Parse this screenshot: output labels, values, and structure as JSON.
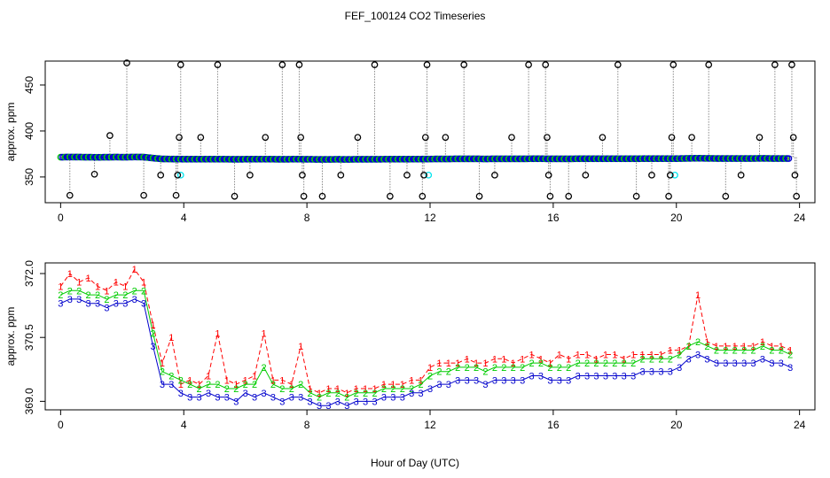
{
  "title": "FEF_100124  CO2 Timeseries",
  "xlabel": "Hour of Day (UTC)",
  "colors": {
    "series1": "#ff0000",
    "series2": "#00cc00",
    "series3": "#0000cc",
    "reference": "#00e5ee",
    "flagged": "#000000",
    "connector": "#888888"
  },
  "chart_data": [
    {
      "type": "scatter",
      "panel": "top",
      "title": "FEF_100124  CO2 Timeseries",
      "xlabel": "",
      "ylabel": "approx. ppm",
      "xlim": [
        -0.5,
        24.5
      ],
      "ylim": [
        322,
        476
      ],
      "xticks": [
        0,
        4,
        8,
        12,
        16,
        20,
        24
      ],
      "yticks": [
        350,
        400,
        450
      ],
      "baseline": {
        "name": "measurement",
        "x": [
          0.0,
          0.3,
          0.6,
          0.9,
          1.2,
          1.5,
          1.8,
          2.1,
          2.4,
          2.7,
          3.0,
          3.3,
          3.6,
          3.9,
          4.2,
          4.5,
          4.8,
          5.1,
          5.4,
          5.7,
          6.0,
          6.3,
          6.6,
          6.9,
          7.2,
          7.5,
          7.8,
          8.1,
          8.4,
          8.7,
          9.0,
          9.3,
          9.6,
          9.9,
          10.2,
          10.5,
          10.8,
          11.1,
          11.4,
          11.7,
          12.0,
          12.3,
          12.6,
          12.9,
          13.2,
          13.5,
          13.8,
          14.1,
          14.4,
          14.7,
          15.0,
          15.3,
          15.6,
          15.9,
          16.2,
          16.5,
          16.8,
          17.1,
          17.4,
          17.7,
          18.0,
          18.3,
          18.6,
          18.9,
          19.2,
          19.5,
          19.8,
          20.1,
          20.4,
          20.7,
          21.0,
          21.3,
          21.6,
          21.9,
          22.2,
          22.5,
          22.8,
          23.1,
          23.4,
          23.7
        ],
        "y": [
          371.5,
          371.7,
          371.6,
          371.5,
          371.4,
          371.5,
          371.6,
          371.5,
          371.7,
          371.6,
          370.5,
          369.6,
          369.5,
          369.4,
          369.3,
          369.3,
          369.4,
          369.3,
          369.3,
          369.2,
          369.3,
          369.3,
          369.4,
          369.3,
          369.2,
          369.3,
          369.3,
          369.2,
          369.1,
          369.1,
          369.2,
          369.1,
          369.2,
          369.2,
          369.2,
          369.3,
          369.3,
          369.3,
          369.4,
          369.4,
          369.5,
          369.6,
          369.6,
          369.7,
          369.7,
          369.7,
          369.6,
          369.7,
          369.7,
          369.7,
          369.7,
          369.8,
          369.8,
          369.7,
          369.7,
          369.7,
          369.8,
          369.8,
          369.8,
          369.8,
          369.8,
          369.8,
          369.8,
          369.9,
          369.9,
          369.9,
          369.9,
          370.0,
          370.2,
          370.3,
          370.2,
          370.1,
          370.1,
          370.1,
          370.1,
          370.1,
          370.2,
          370.1,
          370.1,
          370.0
        ]
      },
      "reference_points": {
        "name": "reference",
        "x": [
          3.9,
          11.95,
          19.95
        ],
        "y": [
          352,
          352,
          352
        ]
      },
      "flagged_points": {
        "name": "flagged",
        "x": [
          0.3,
          1.1,
          1.6,
          2.15,
          2.7,
          3.25,
          3.75,
          3.8,
          3.85,
          3.9,
          4.55,
          5.1,
          5.65,
          6.15,
          6.65,
          7.2,
          7.75,
          7.8,
          7.85,
          7.9,
          8.5,
          9.1,
          9.65,
          10.2,
          10.7,
          11.25,
          11.75,
          11.8,
          11.85,
          11.9,
          12.5,
          13.1,
          13.6,
          14.1,
          14.65,
          15.2,
          15.75,
          15.8,
          15.85,
          15.9,
          16.5,
          17.05,
          17.6,
          18.1,
          18.7,
          19.2,
          19.75,
          19.8,
          19.85,
          19.9,
          20.5,
          21.05,
          21.6,
          22.1,
          22.7,
          23.2,
          23.75,
          23.8,
          23.85,
          23.9
        ],
        "y": [
          330,
          353,
          395,
          474,
          330,
          352,
          330,
          352,
          393,
          472,
          393,
          472,
          329,
          352,
          393,
          472,
          472,
          393,
          352,
          329,
          329,
          352,
          393,
          472,
          329,
          352,
          329,
          352,
          393,
          472,
          393,
          472,
          329,
          352,
          393,
          472,
          472,
          393,
          352,
          329,
          329,
          352,
          393,
          472,
          329,
          352,
          329,
          352,
          393,
          472,
          393,
          472,
          329,
          352,
          393,
          472,
          472,
          393,
          352,
          329
        ]
      }
    },
    {
      "type": "line",
      "panel": "bottom",
      "xlabel": "Hour of Day (UTC)",
      "ylabel": "approx. ppm",
      "xlim": [
        -0.5,
        24.5
      ],
      "ylim": [
        368.8,
        372.25
      ],
      "xticks": [
        0,
        4,
        8,
        12,
        16,
        20,
        24
      ],
      "yticks": [
        369.0,
        370.5,
        372.0
      ],
      "ytick_labels": [
        "369.0",
        "370.5",
        "372.0"
      ],
      "x": [
        0.0,
        0.3,
        0.6,
        0.9,
        1.2,
        1.5,
        1.8,
        2.1,
        2.4,
        2.7,
        3.0,
        3.3,
        3.6,
        3.9,
        4.2,
        4.5,
        4.8,
        5.1,
        5.4,
        5.7,
        6.0,
        6.3,
        6.6,
        6.9,
        7.2,
        7.5,
        7.8,
        8.1,
        8.4,
        8.7,
        9.0,
        9.3,
        9.6,
        9.9,
        10.2,
        10.5,
        10.8,
        11.1,
        11.4,
        11.7,
        12.0,
        12.3,
        12.6,
        12.9,
        13.2,
        13.5,
        13.8,
        14.1,
        14.4,
        14.7,
        15.0,
        15.3,
        15.6,
        15.9,
        16.2,
        16.5,
        16.8,
        17.1,
        17.4,
        17.7,
        18.0,
        18.3,
        18.6,
        18.9,
        19.2,
        19.5,
        19.8,
        20.1,
        20.4,
        20.7,
        21.0,
        21.3,
        21.6,
        21.9,
        22.2,
        22.5,
        22.8,
        23.1,
        23.4,
        23.7
      ],
      "series": [
        {
          "name": "1",
          "marker": "1",
          "values": [
            371.7,
            372.0,
            371.8,
            371.9,
            371.7,
            371.6,
            371.8,
            371.7,
            372.1,
            371.8,
            370.8,
            369.9,
            370.5,
            369.4,
            369.5,
            369.4,
            369.6,
            370.6,
            369.5,
            369.4,
            369.5,
            369.6,
            370.6,
            369.5,
            369.5,
            369.4,
            370.3,
            369.3,
            369.2,
            369.3,
            369.3,
            369.2,
            369.3,
            369.3,
            369.3,
            369.4,
            369.4,
            369.4,
            369.5,
            369.5,
            369.8,
            369.9,
            369.9,
            369.9,
            370.0,
            369.9,
            369.9,
            370.0,
            370.0,
            369.9,
            370.0,
            370.1,
            370.0,
            369.9,
            370.1,
            370.0,
            370.1,
            370.1,
            370.0,
            370.1,
            370.1,
            370.0,
            370.1,
            370.1,
            370.1,
            370.1,
            370.2,
            370.2,
            370.3,
            371.5,
            370.4,
            370.3,
            370.3,
            370.3,
            370.3,
            370.3,
            370.4,
            370.3,
            370.3,
            370.2
          ]
        },
        {
          "name": "2",
          "marker": "2",
          "values": [
            371.5,
            371.6,
            371.6,
            371.5,
            371.5,
            371.4,
            371.5,
            371.5,
            371.6,
            371.6,
            370.6,
            369.7,
            369.6,
            369.5,
            369.4,
            369.3,
            369.4,
            369.4,
            369.3,
            369.3,
            369.4,
            369.4,
            369.8,
            369.4,
            369.3,
            369.3,
            369.4,
            369.2,
            369.1,
            369.2,
            369.2,
            369.1,
            369.2,
            369.2,
            369.2,
            369.3,
            369.3,
            369.3,
            369.3,
            369.4,
            369.6,
            369.7,
            369.7,
            369.8,
            369.8,
            369.8,
            369.7,
            369.8,
            369.8,
            369.8,
            369.8,
            369.9,
            369.9,
            369.8,
            369.8,
            369.8,
            369.9,
            369.9,
            369.9,
            369.9,
            369.9,
            369.9,
            369.9,
            370.0,
            370.0,
            370.0,
            370.0,
            370.1,
            370.3,
            370.4,
            370.3,
            370.2,
            370.2,
            370.2,
            370.2,
            370.2,
            370.3,
            370.2,
            370.2,
            370.1
          ]
        },
        {
          "name": "3",
          "marker": "3",
          "values": [
            371.3,
            371.4,
            371.4,
            371.3,
            371.3,
            371.2,
            371.3,
            371.3,
            371.4,
            371.3,
            370.3,
            369.4,
            369.4,
            369.2,
            369.1,
            369.1,
            369.2,
            369.1,
            369.1,
            369.0,
            369.2,
            369.1,
            369.2,
            369.1,
            369.0,
            369.1,
            369.1,
            369.0,
            368.9,
            368.9,
            369.0,
            368.9,
            369.0,
            369.0,
            369.0,
            369.1,
            369.1,
            369.1,
            369.2,
            369.2,
            369.3,
            369.4,
            369.4,
            369.5,
            369.5,
            369.5,
            369.4,
            369.5,
            369.5,
            369.5,
            369.5,
            369.6,
            369.6,
            369.5,
            369.5,
            369.5,
            369.6,
            369.6,
            369.6,
            369.6,
            369.6,
            369.6,
            369.6,
            369.7,
            369.7,
            369.7,
            369.7,
            369.8,
            370.0,
            370.1,
            370.0,
            369.9,
            369.9,
            369.9,
            369.9,
            369.9,
            370.0,
            369.9,
            369.9,
            369.8
          ]
        }
      ]
    }
  ]
}
